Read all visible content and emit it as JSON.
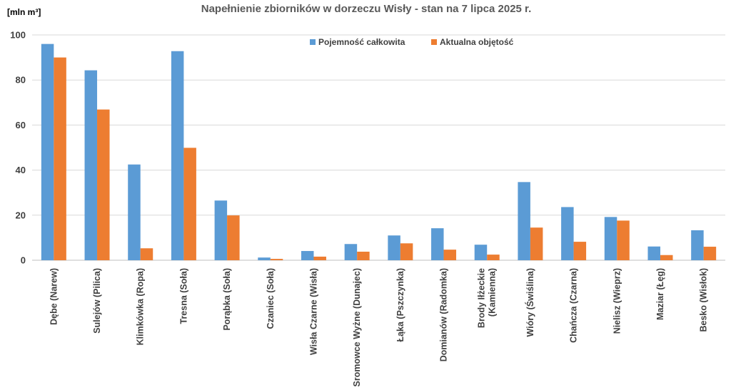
{
  "chart_data": {
    "type": "bar",
    "title": "Napełnienie zbiorników w dorzeczu Wisły - stan na 7 lipca 2025 r.",
    "ylabel": "[mln m³]",
    "xlabel": "",
    "ylim": [
      0,
      100
    ],
    "yticks": [
      0,
      20,
      40,
      60,
      80,
      100
    ],
    "grid": true,
    "legend_position": "top-center",
    "categories": [
      "Dębe (Narew)",
      "Sulejów (Pilica)",
      "Klimkówka (Ropa)",
      "Tresna (Soła)",
      "Porąbka (Soła)",
      "Czaniec (Soła)",
      "Wisła Czarne (Wisła)",
      "Sromowce Wyżne (Dunajec)",
      "Łąka (Pszczynka)",
      "Domianów (Radomka)",
      "Brody Iłżeckie (Kamienna)",
      "Wióry (Świślina)",
      "Chańcza (Czarna)",
      "Nielisz (Wieprz)",
      "Maziar (Łęg)",
      "Besko (Wisłok)"
    ],
    "series": [
      {
        "name": "Pojemność całkowita",
        "color": "#5b9bd5",
        "values": [
          96,
          84.3,
          42.5,
          92.8,
          26.5,
          1.2,
          4.1,
          7.2,
          11,
          14.2,
          6.9,
          34.7,
          23.6,
          19.2,
          6.1,
          13.3
        ]
      },
      {
        "name": "Aktualna objętość",
        "color": "#ed7d31",
        "values": [
          90,
          66.9,
          5.3,
          49.9,
          19.9,
          0.6,
          1.6,
          3.8,
          7.5,
          4.7,
          2.5,
          14.5,
          8.2,
          17.6,
          2.3,
          6
        ]
      }
    ]
  }
}
